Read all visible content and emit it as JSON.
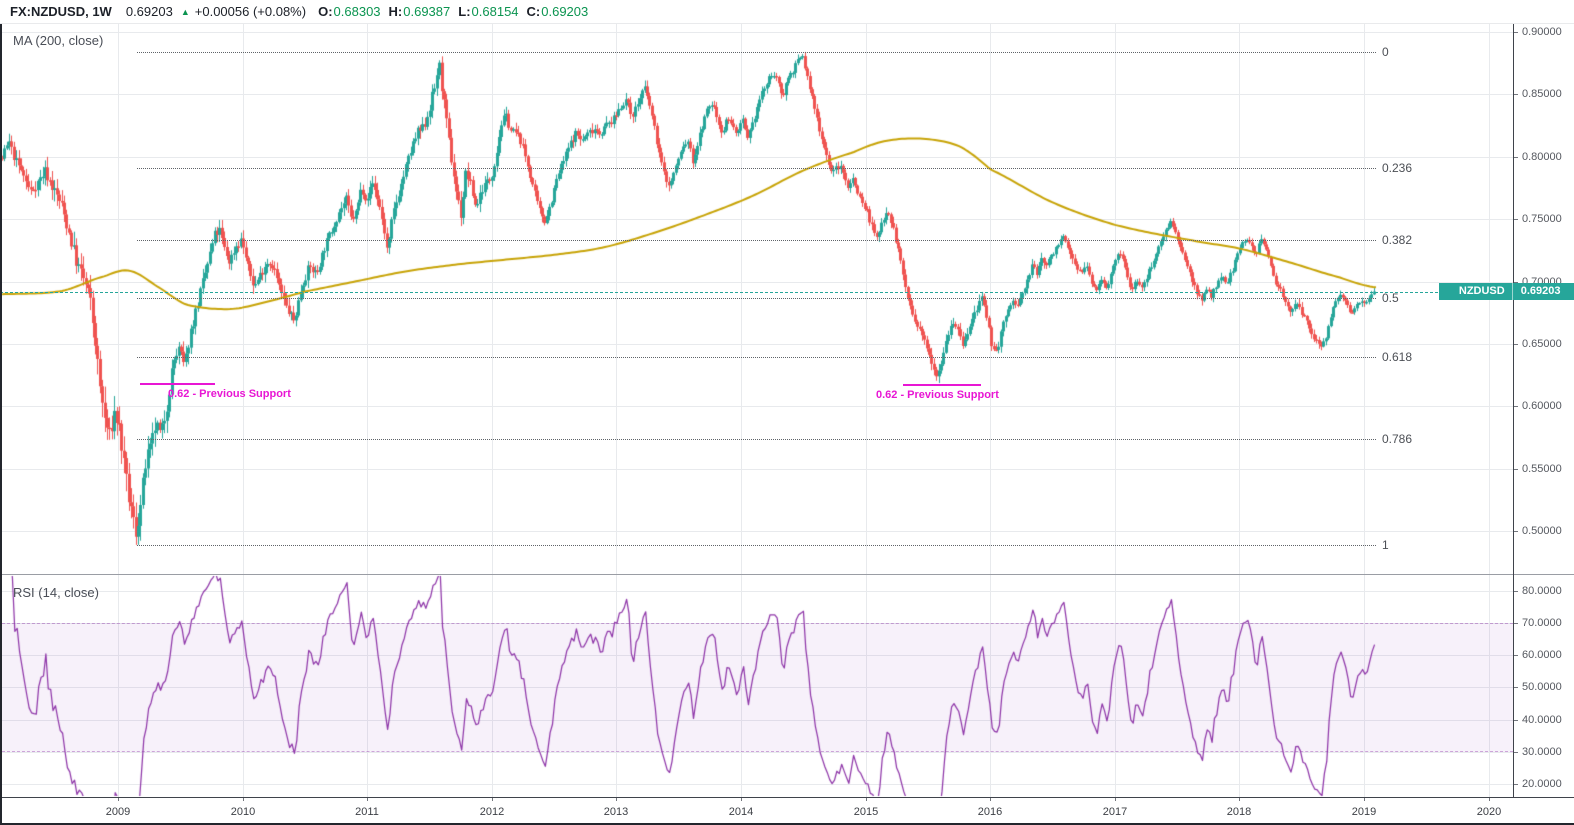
{
  "header": {
    "symbol_title": "FX:NZDUSD, 1W",
    "last_price": "0.69203",
    "direction_icon": "▲",
    "change": "+0.00056 (+0.08%)",
    "open_label": "O:",
    "open": "0.68303",
    "high_label": "H:",
    "high": "0.69387",
    "low_label": "L:",
    "low": "0.68154",
    "close_label": "C:",
    "close": "0.69203"
  },
  "panes": {
    "price_pane_title": "MA (200, close)",
    "rsi_pane_title": "RSI (14, close)"
  },
  "price_tag": {
    "symbol": "NZDUSD",
    "value": "0.69203"
  },
  "chart_data": {
    "type": "candlestick",
    "symbol": "FX:NZDUSD",
    "timeframe": "1W",
    "last_price": 0.69203,
    "price_axis": {
      "min": 0.5,
      "max": 0.9,
      "step": 0.05,
      "ticks": [
        {
          "v": 0.9,
          "label": "0.90000"
        },
        {
          "v": 0.85,
          "label": "0.85000"
        },
        {
          "v": 0.8,
          "label": "0.80000"
        },
        {
          "v": 0.75,
          "label": "0.75000"
        },
        {
          "v": 0.7,
          "label": "0.70000"
        },
        {
          "v": 0.65,
          "label": "0.65000"
        },
        {
          "v": 0.6,
          "label": "0.60000"
        },
        {
          "v": 0.55,
          "label": "0.55000"
        },
        {
          "v": 0.5,
          "label": "0.50000"
        }
      ]
    },
    "rsi_axis": {
      "ticks": [
        {
          "v": 80,
          "label": "80.0000"
        },
        {
          "v": 70,
          "label": "70.0000"
        },
        {
          "v": 60,
          "label": "60.0000"
        },
        {
          "v": 50,
          "label": "50.0000"
        },
        {
          "v": 40,
          "label": "40.0000"
        },
        {
          "v": 30,
          "label": "30.0000"
        },
        {
          "v": 20,
          "label": "20.0000"
        }
      ]
    },
    "time_axis": {
      "years": [
        2009,
        2010,
        2011,
        2012,
        2013,
        2014,
        2015,
        2016,
        2017,
        2018,
        2019,
        2020
      ]
    },
    "indicators": {
      "ma": {
        "type": "MA",
        "period": 200,
        "source": "close"
      },
      "rsi": {
        "type": "RSI",
        "period": 14,
        "source": "close",
        "upper_band": 70,
        "lower_band": 30
      }
    },
    "fib_retracement": {
      "price_at_0": 0.884,
      "price_at_1": 0.489,
      "start_year": 2009.15,
      "levels": [
        {
          "value": 0,
          "label": "0"
        },
        {
          "value": 0.236,
          "label": "0.236"
        },
        {
          "value": 0.382,
          "label": "0.382"
        },
        {
          "value": 0.5,
          "label": "0.5"
        },
        {
          "value": 0.618,
          "label": "0.618"
        },
        {
          "value": 0.786,
          "label": "0.786"
        },
        {
          "value": 1,
          "label": "1"
        }
      ]
    },
    "annotations": [
      {
        "label": "0.62 - Previous Support",
        "price": 0.6184,
        "line_start_year": 2009.18,
        "line_end_year": 2009.78,
        "text_anchor_year": 2009.4
      },
      {
        "label": "0.62 - Previous Support",
        "price": 0.6178,
        "line_start_year": 2015.3,
        "line_end_year": 2015.925,
        "text_anchor_year": 2015.08
      }
    ],
    "price_waypoints": [
      [
        2007.75,
        0.762
      ],
      [
        2007.9,
        0.778
      ],
      [
        2008.0,
        0.792
      ],
      [
        2008.08,
        0.8
      ],
      [
        2008.13,
        0.812
      ],
      [
        2008.18,
        0.798
      ],
      [
        2008.24,
        0.787
      ],
      [
        2008.3,
        0.772
      ],
      [
        2008.36,
        0.779
      ],
      [
        2008.42,
        0.789
      ],
      [
        2008.48,
        0.776
      ],
      [
        2008.55,
        0.762
      ],
      [
        2008.62,
        0.737
      ],
      [
        2008.68,
        0.713
      ],
      [
        2008.73,
        0.702
      ],
      [
        2008.78,
        0.687
      ],
      [
        2008.82,
        0.656
      ],
      [
        2008.86,
        0.617
      ],
      [
        2008.9,
        0.59
      ],
      [
        2008.94,
        0.576
      ],
      [
        2008.98,
        0.596
      ],
      [
        2009.02,
        0.581
      ],
      [
        2009.06,
        0.547
      ],
      [
        2009.1,
        0.522
      ],
      [
        2009.15,
        0.499
      ],
      [
        2009.19,
        0.521
      ],
      [
        2009.23,
        0.556
      ],
      [
        2009.27,
        0.566
      ],
      [
        2009.31,
        0.586
      ],
      [
        2009.35,
        0.576
      ],
      [
        2009.4,
        0.601
      ],
      [
        2009.45,
        0.636
      ],
      [
        2009.5,
        0.646
      ],
      [
        2009.54,
        0.631
      ],
      [
        2009.58,
        0.656
      ],
      [
        2009.63,
        0.676
      ],
      [
        2009.68,
        0.696
      ],
      [
        2009.73,
        0.716
      ],
      [
        2009.78,
        0.737
      ],
      [
        2009.82,
        0.741
      ],
      [
        2009.86,
        0.726
      ],
      [
        2009.9,
        0.716
      ],
      [
        2009.95,
        0.728
      ],
      [
        2010.0,
        0.734
      ],
      [
        2010.05,
        0.711
      ],
      [
        2010.1,
        0.696
      ],
      [
        2010.15,
        0.706
      ],
      [
        2010.2,
        0.716
      ],
      [
        2010.25,
        0.713
      ],
      [
        2010.3,
        0.696
      ],
      [
        2010.36,
        0.679
      ],
      [
        2010.42,
        0.668
      ],
      [
        2010.48,
        0.696
      ],
      [
        2010.54,
        0.712
      ],
      [
        2010.6,
        0.706
      ],
      [
        2010.66,
        0.726
      ],
      [
        2010.72,
        0.741
      ],
      [
        2010.78,
        0.756
      ],
      [
        2010.84,
        0.766
      ],
      [
        2010.88,
        0.749
      ],
      [
        2010.92,
        0.756
      ],
      [
        2010.96,
        0.776
      ],
      [
        2011.0,
        0.766
      ],
      [
        2011.05,
        0.779
      ],
      [
        2011.1,
        0.763
      ],
      [
        2011.14,
        0.743
      ],
      [
        2011.17,
        0.722
      ],
      [
        2011.21,
        0.753
      ],
      [
        2011.26,
        0.771
      ],
      [
        2011.31,
        0.789
      ],
      [
        2011.36,
        0.806
      ],
      [
        2011.41,
        0.819
      ],
      [
        2011.46,
        0.823
      ],
      [
        2011.51,
        0.841
      ],
      [
        2011.55,
        0.856
      ],
      [
        2011.58,
        0.876
      ],
      [
        2011.61,
        0.853
      ],
      [
        2011.64,
        0.829
      ],
      [
        2011.68,
        0.799
      ],
      [
        2011.72,
        0.773
      ],
      [
        2011.76,
        0.753
      ],
      [
        2011.8,
        0.789
      ],
      [
        2011.84,
        0.776
      ],
      [
        2011.88,
        0.759
      ],
      [
        2011.92,
        0.773
      ],
      [
        2011.96,
        0.779
      ],
      [
        2012.0,
        0.783
      ],
      [
        2012.04,
        0.801
      ],
      [
        2012.08,
        0.826
      ],
      [
        2012.12,
        0.833
      ],
      [
        2012.16,
        0.821
      ],
      [
        2012.2,
        0.819
      ],
      [
        2012.24,
        0.813
      ],
      [
        2012.28,
        0.799
      ],
      [
        2012.33,
        0.779
      ],
      [
        2012.38,
        0.759
      ],
      [
        2012.43,
        0.749
      ],
      [
        2012.48,
        0.763
      ],
      [
        2012.53,
        0.783
      ],
      [
        2012.58,
        0.796
      ],
      [
        2012.63,
        0.809
      ],
      [
        2012.68,
        0.819
      ],
      [
        2012.73,
        0.813
      ],
      [
        2012.78,
        0.819
      ],
      [
        2012.83,
        0.823
      ],
      [
        2012.88,
        0.819
      ],
      [
        2012.93,
        0.826
      ],
      [
        2012.98,
        0.829
      ],
      [
        2013.03,
        0.839
      ],
      [
        2013.08,
        0.846
      ],
      [
        2013.13,
        0.833
      ],
      [
        2013.18,
        0.843
      ],
      [
        2013.23,
        0.856
      ],
      [
        2013.28,
        0.839
      ],
      [
        2013.33,
        0.813
      ],
      [
        2013.38,
        0.789
      ],
      [
        2013.43,
        0.776
      ],
      [
        2013.48,
        0.791
      ],
      [
        2013.53,
        0.806
      ],
      [
        2013.58,
        0.813
      ],
      [
        2013.62,
        0.796
      ],
      [
        2013.66,
        0.811
      ],
      [
        2013.7,
        0.826
      ],
      [
        2013.74,
        0.839
      ],
      [
        2013.78,
        0.843
      ],
      [
        2013.82,
        0.829
      ],
      [
        2013.86,
        0.819
      ],
      [
        2013.9,
        0.833
      ],
      [
        2013.94,
        0.823
      ],
      [
        2013.98,
        0.819
      ],
      [
        2014.02,
        0.829
      ],
      [
        2014.06,
        0.813
      ],
      [
        2014.1,
        0.826
      ],
      [
        2014.14,
        0.841
      ],
      [
        2014.18,
        0.853
      ],
      [
        2014.22,
        0.859
      ],
      [
        2014.26,
        0.869
      ],
      [
        2014.3,
        0.859
      ],
      [
        2014.34,
        0.849
      ],
      [
        2014.38,
        0.863
      ],
      [
        2014.42,
        0.869
      ],
      [
        2014.46,
        0.876
      ],
      [
        2014.5,
        0.881
      ],
      [
        2014.54,
        0.863
      ],
      [
        2014.58,
        0.846
      ],
      [
        2014.62,
        0.829
      ],
      [
        2014.66,
        0.813
      ],
      [
        2014.7,
        0.799
      ],
      [
        2014.74,
        0.786
      ],
      [
        2014.78,
        0.793
      ],
      [
        2014.82,
        0.789
      ],
      [
        2014.86,
        0.776
      ],
      [
        2014.9,
        0.783
      ],
      [
        2014.94,
        0.773
      ],
      [
        2014.98,
        0.763
      ],
      [
        2015.02,
        0.756
      ],
      [
        2015.06,
        0.743
      ],
      [
        2015.1,
        0.733
      ],
      [
        2015.14,
        0.749
      ],
      [
        2015.18,
        0.759
      ],
      [
        2015.22,
        0.746
      ],
      [
        2015.26,
        0.729
      ],
      [
        2015.3,
        0.709
      ],
      [
        2015.34,
        0.689
      ],
      [
        2015.38,
        0.673
      ],
      [
        2015.42,
        0.663
      ],
      [
        2015.46,
        0.656
      ],
      [
        2015.5,
        0.649
      ],
      [
        2015.55,
        0.633
      ],
      [
        2015.58,
        0.625
      ],
      [
        2015.62,
        0.639
      ],
      [
        2015.66,
        0.656
      ],
      [
        2015.7,
        0.669
      ],
      [
        2015.74,
        0.663
      ],
      [
        2015.78,
        0.649
      ],
      [
        2015.82,
        0.656
      ],
      [
        2015.86,
        0.669
      ],
      [
        2015.9,
        0.679
      ],
      [
        2015.94,
        0.686
      ],
      [
        2015.98,
        0.669
      ],
      [
        2016.02,
        0.649
      ],
      [
        2016.06,
        0.643
      ],
      [
        2016.1,
        0.663
      ],
      [
        2016.14,
        0.673
      ],
      [
        2016.18,
        0.686
      ],
      [
        2016.22,
        0.679
      ],
      [
        2016.26,
        0.689
      ],
      [
        2016.3,
        0.699
      ],
      [
        2016.34,
        0.713
      ],
      [
        2016.38,
        0.706
      ],
      [
        2016.42,
        0.719
      ],
      [
        2016.46,
        0.713
      ],
      [
        2016.5,
        0.721
      ],
      [
        2016.54,
        0.729
      ],
      [
        2016.58,
        0.736
      ],
      [
        2016.62,
        0.729
      ],
      [
        2016.66,
        0.719
      ],
      [
        2016.7,
        0.713
      ],
      [
        2016.74,
        0.706
      ],
      [
        2016.78,
        0.713
      ],
      [
        2016.82,
        0.699
      ],
      [
        2016.86,
        0.693
      ],
      [
        2016.9,
        0.703
      ],
      [
        2016.94,
        0.696
      ],
      [
        2016.98,
        0.706
      ],
      [
        2017.02,
        0.719
      ],
      [
        2017.06,
        0.723
      ],
      [
        2017.1,
        0.706
      ],
      [
        2017.14,
        0.693
      ],
      [
        2017.18,
        0.703
      ],
      [
        2017.22,
        0.693
      ],
      [
        2017.26,
        0.703
      ],
      [
        2017.3,
        0.713
      ],
      [
        2017.34,
        0.723
      ],
      [
        2017.38,
        0.733
      ],
      [
        2017.42,
        0.743
      ],
      [
        2017.46,
        0.749
      ],
      [
        2017.5,
        0.736
      ],
      [
        2017.54,
        0.723
      ],
      [
        2017.58,
        0.716
      ],
      [
        2017.62,
        0.703
      ],
      [
        2017.66,
        0.693
      ],
      [
        2017.7,
        0.686
      ],
      [
        2017.74,
        0.693
      ],
      [
        2017.78,
        0.689
      ],
      [
        2017.82,
        0.696
      ],
      [
        2017.86,
        0.703
      ],
      [
        2017.9,
        0.699
      ],
      [
        2017.94,
        0.706
      ],
      [
        2017.98,
        0.719
      ],
      [
        2018.02,
        0.729
      ],
      [
        2018.06,
        0.736
      ],
      [
        2018.1,
        0.729
      ],
      [
        2018.14,
        0.723
      ],
      [
        2018.18,
        0.733
      ],
      [
        2018.22,
        0.726
      ],
      [
        2018.26,
        0.713
      ],
      [
        2018.3,
        0.699
      ],
      [
        2018.34,
        0.693
      ],
      [
        2018.38,
        0.683
      ],
      [
        2018.42,
        0.676
      ],
      [
        2018.46,
        0.681
      ],
      [
        2018.5,
        0.677
      ],
      [
        2018.54,
        0.669
      ],
      [
        2018.58,
        0.659
      ],
      [
        2018.62,
        0.653
      ],
      [
        2018.66,
        0.648
      ],
      [
        2018.7,
        0.656
      ],
      [
        2018.74,
        0.673
      ],
      [
        2018.78,
        0.683
      ],
      [
        2018.82,
        0.689
      ],
      [
        2018.86,
        0.683
      ],
      [
        2018.9,
        0.673
      ],
      [
        2018.94,
        0.681
      ],
      [
        2018.98,
        0.686
      ],
      [
        2019.02,
        0.683
      ],
      [
        2019.06,
        0.69
      ],
      [
        2019.085,
        0.69203
      ]
    ],
    "ma200_waypoints": [
      [
        2007.75,
        0.69
      ],
      [
        2008.1,
        0.69
      ],
      [
        2008.55,
        0.6925
      ],
      [
        2008.9,
        0.7045
      ],
      [
        2009.1,
        0.7085
      ],
      [
        2009.35,
        0.694
      ],
      [
        2009.55,
        0.6815
      ],
      [
        2009.9,
        0.678
      ],
      [
        2010.2,
        0.684
      ],
      [
        2010.5,
        0.692
      ],
      [
        2010.9,
        0.7
      ],
      [
        2011.3,
        0.708
      ],
      [
        2011.7,
        0.7135
      ],
      [
        2012.1,
        0.7175
      ],
      [
        2012.5,
        0.7215
      ],
      [
        2012.9,
        0.7275
      ],
      [
        2013.3,
        0.739
      ],
      [
        2013.7,
        0.753
      ],
      [
        2014.1,
        0.769
      ],
      [
        2014.5,
        0.789
      ],
      [
        2014.9,
        0.8035
      ],
      [
        2015.15,
        0.8125
      ],
      [
        2015.45,
        0.8145
      ],
      [
        2015.75,
        0.8085
      ],
      [
        2016.0,
        0.79
      ],
      [
        2016.5,
        0.7635
      ],
      [
        2017.0,
        0.7455
      ],
      [
        2017.6,
        0.7335
      ],
      [
        2018.0,
        0.7265
      ],
      [
        2018.4,
        0.7155
      ],
      [
        2018.8,
        0.7035
      ],
      [
        2019.085,
        0.6955
      ]
    ],
    "volatility_waypoints": [
      [
        2007.75,
        0.014
      ],
      [
        2008.3,
        0.015
      ],
      [
        2008.7,
        0.026
      ],
      [
        2009.1,
        0.032
      ],
      [
        2009.4,
        0.022
      ],
      [
        2009.8,
        0.016
      ],
      [
        2010.5,
        0.014
      ],
      [
        2011.2,
        0.014
      ],
      [
        2011.6,
        0.02
      ],
      [
        2012.0,
        0.013
      ],
      [
        2013.0,
        0.012
      ],
      [
        2014.0,
        0.01
      ],
      [
        2014.8,
        0.011
      ],
      [
        2015.5,
        0.013
      ],
      [
        2016.2,
        0.011
      ],
      [
        2017.0,
        0.009
      ],
      [
        2018.0,
        0.009
      ],
      [
        2018.7,
        0.009
      ],
      [
        2019.1,
        0.007
      ]
    ],
    "colors": {
      "up": "#26a69a",
      "down": "#ef5350",
      "ma200": "#c7a306",
      "rsi_line": "#8e35a8",
      "rsi_band_fill": "rgba(155,77,188,0.08)",
      "rsi_band_border": "rgba(142,53,168,0.40)",
      "grid": "#e8eaed",
      "fib": "#5f6368",
      "annotation": "#e816d4",
      "last_price_label": "#26a69a",
      "value_green": "#0b9450"
    }
  }
}
